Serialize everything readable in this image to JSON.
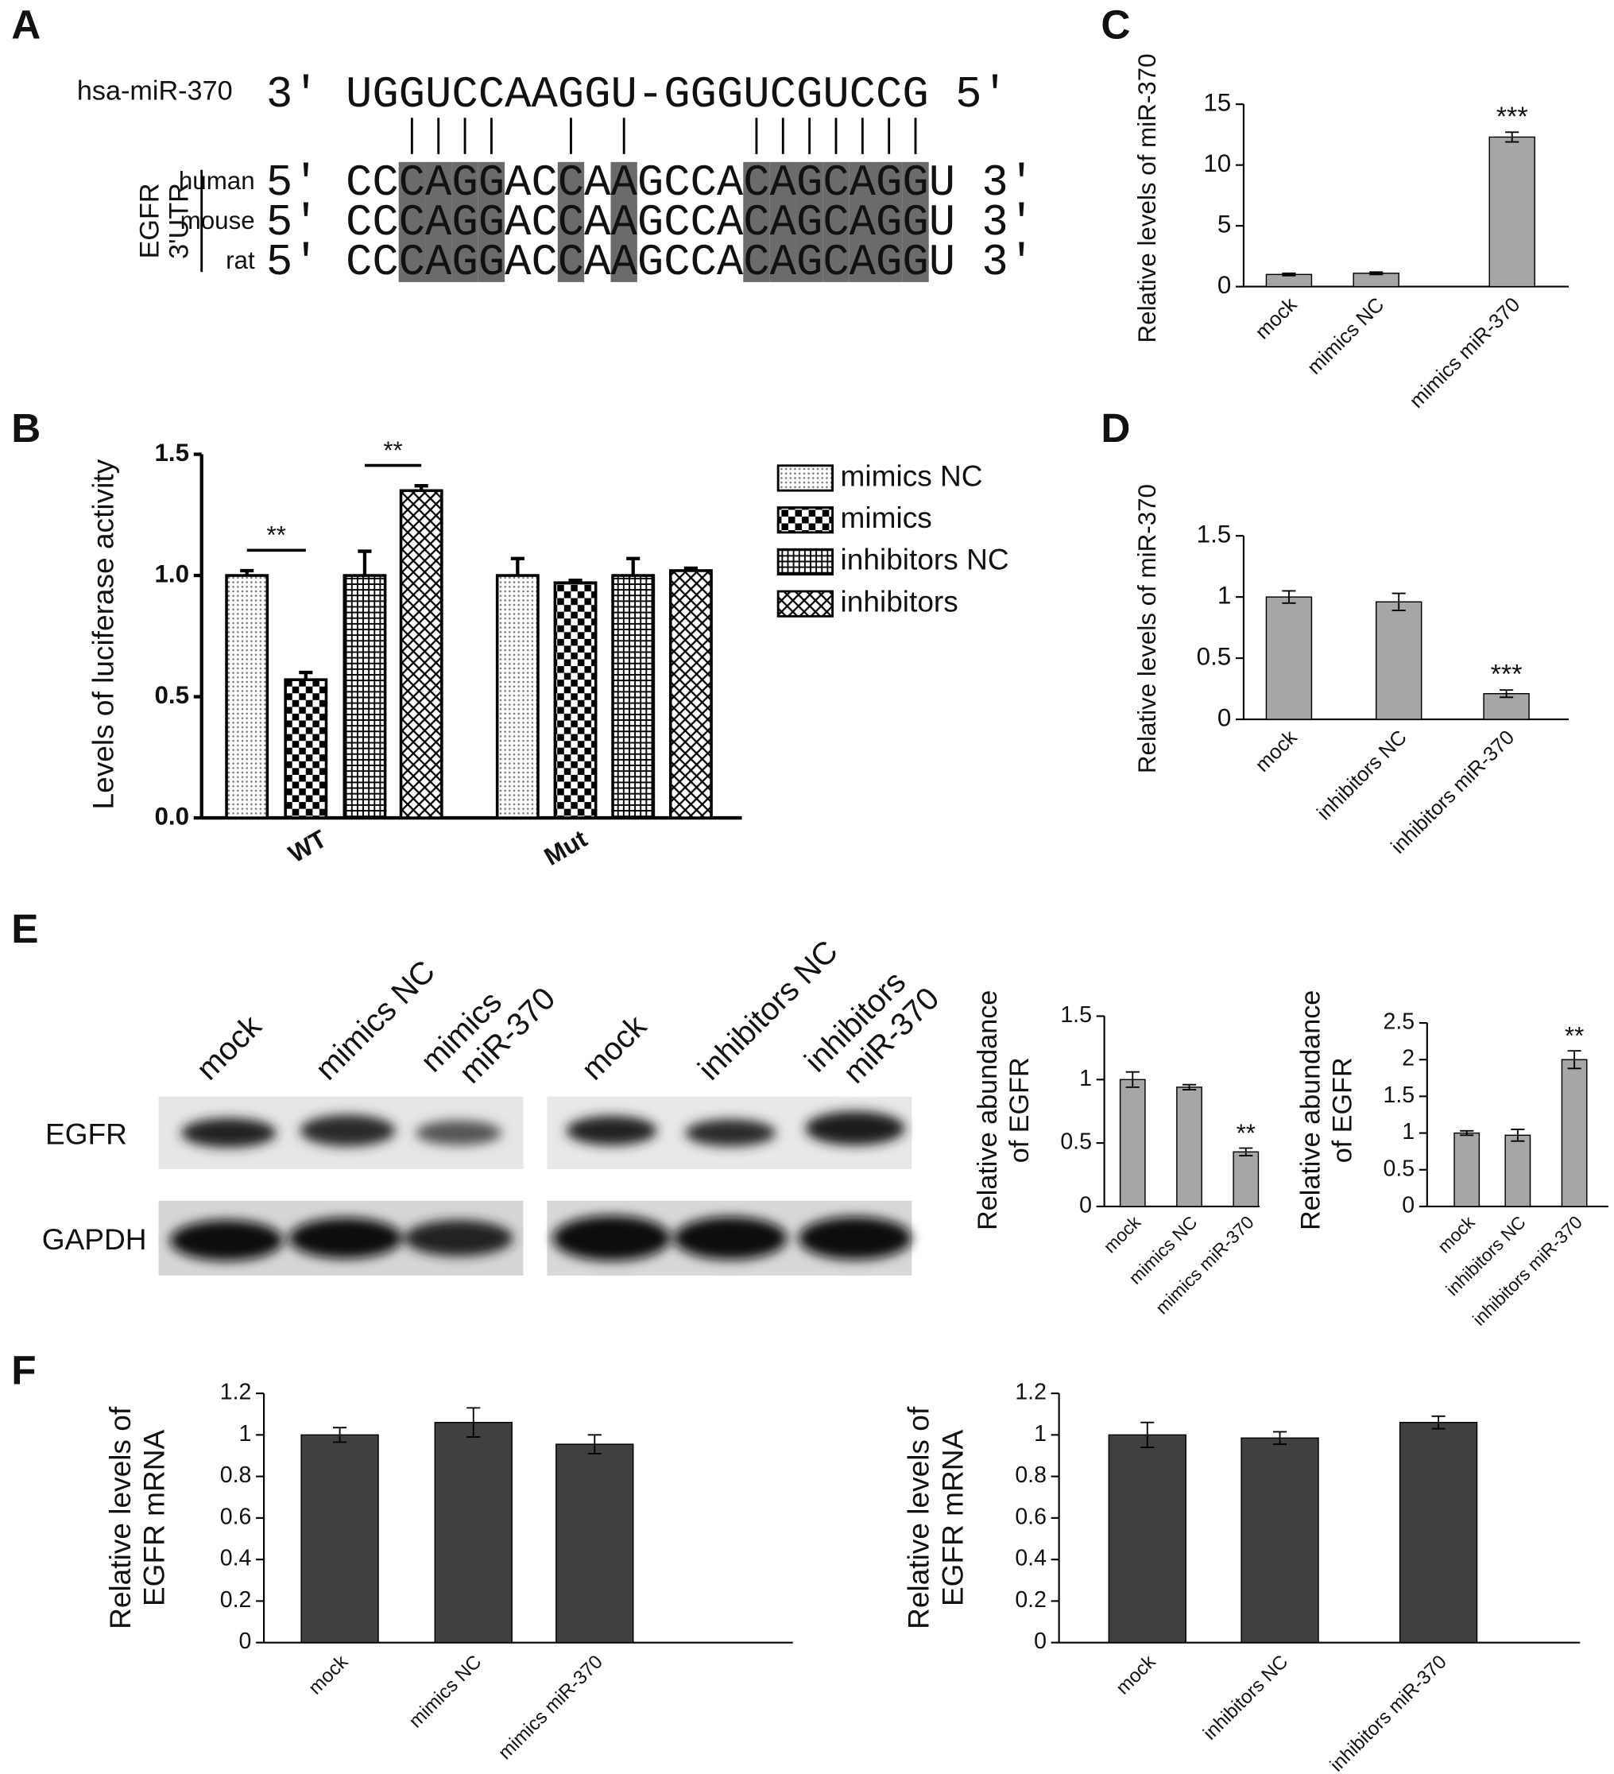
{
  "panel_labels": [
    "A",
    "B",
    "C",
    "D",
    "E",
    "F"
  ],
  "alignment": {
    "mirna_name": "hsa-miR-370",
    "mirna_seq": "3' UGGUCCAAGGU-GGGUCGUCCG 5'",
    "gene_label": [
      "EGFR",
      "3'UTR"
    ],
    "rows": [
      {
        "species": "human",
        "seq": "5' CCCAGGACCAAGCCACAGCAGGU 3'"
      },
      {
        "species": "mouse",
        "seq": "5' CCCAGGACCAAGCCACAGCAGGU 3'"
      },
      {
        "species": "rat",
        "seq": "5' CCCAGGACCAAGCCACAGCAGGU 3'"
      }
    ]
  },
  "blot": {
    "lanes": [
      [
        "mock"
      ],
      [
        "mimics NC"
      ],
      [
        "mimics",
        "miR-370"
      ],
      [
        "mock"
      ],
      [
        "inhibitors NC"
      ],
      [
        "inhibitors",
        "miR-370"
      ]
    ],
    "rows": [
      "EGFR",
      "GAPDH"
    ]
  },
  "chart_data": [
    {
      "type": "bar",
      "ylabel": "Levels of luciferase activity",
      "categories": [
        "WT",
        "Mut"
      ],
      "series": [
        {
          "name": "mimics NC",
          "pattern": "dots",
          "values": [
            1.0,
            1.0
          ],
          "errors": [
            0.02,
            0.07
          ]
        },
        {
          "name": "mimics",
          "pattern": "checker",
          "values": [
            0.57,
            0.97
          ],
          "errors": [
            0.03,
            0.01
          ]
        },
        {
          "name": "inhibitors NC",
          "pattern": "grid",
          "values": [
            1.0,
            1.0
          ],
          "errors": [
            0.1,
            0.07
          ]
        },
        {
          "name": "inhibitors",
          "pattern": "crosshatch",
          "values": [
            1.35,
            1.02
          ],
          "errors": [
            0.02,
            0.01
          ]
        }
      ],
      "annotations": [
        "**",
        "**"
      ],
      "ylim": [
        0,
        1.5
      ],
      "yticks": [
        {
          "value": 0,
          "label": "0.0"
        },
        0.5,
        {
          "value": 1,
          "label": "1.0"
        },
        1.5
      ]
    },
    {
      "type": "bar",
      "ylabel": "Relative levels of miR-370",
      "categories": [
        "mock",
        "mimics NC",
        "mimics miR-370"
      ],
      "values": [
        1.0,
        1.1,
        12.3
      ],
      "errors": [
        0.1,
        0.1,
        0.4
      ],
      "significance": [
        null,
        null,
        "***"
      ],
      "color": "#a6a6a6",
      "ylim": [
        0,
        15
      ],
      "yticks": [
        0,
        5,
        10,
        15
      ]
    },
    {
      "type": "bar",
      "ylabel": "Relative levels of miR-370",
      "categories": [
        "mock",
        "inhibitors NC",
        "inhibitors miR-370"
      ],
      "values": [
        1.0,
        0.96,
        0.21
      ],
      "errors": [
        0.05,
        0.07,
        0.03
      ],
      "significance": [
        null,
        null,
        "***"
      ],
      "color": "#a6a6a6",
      "ylim": [
        0,
        1.5
      ],
      "yticks": [
        0,
        0.5,
        1,
        1.5
      ]
    },
    {
      "type": "bar",
      "ylabel": [
        "Relative abundance",
        "of EGFR"
      ],
      "categories": [
        "mock",
        "mimics NC",
        "mimics miR-370"
      ],
      "values": [
        1.0,
        0.94,
        0.43
      ],
      "errors": [
        0.06,
        0.02,
        0.03
      ],
      "significance": [
        null,
        null,
        "**"
      ],
      "color": "#a6a6a6",
      "ylim": [
        0,
        1.5
      ],
      "yticks": [
        0,
        0.5,
        1,
        1.5
      ]
    },
    {
      "type": "bar",
      "ylabel": [
        "Relative abundance",
        "of EGFR"
      ],
      "categories": [
        "mock",
        "inhibitors NC",
        "inhibitors miR-370"
      ],
      "values": [
        1.0,
        0.97,
        2.0
      ],
      "errors": [
        0.03,
        0.08,
        0.12
      ],
      "significance": [
        null,
        null,
        "**"
      ],
      "color": "#a6a6a6",
      "ylim": [
        0,
        2.5
      ],
      "yticks": [
        0,
        0.5,
        1,
        1.5,
        2,
        2.5
      ]
    },
    {
      "type": "bar",
      "ylabel": [
        "Relative levels of",
        "EGFR mRNA"
      ],
      "categories": [
        "mock",
        "mimics NC",
        "mimics miR-370"
      ],
      "values": [
        1.0,
        1.06,
        0.955
      ],
      "errors": [
        0.035,
        0.07,
        0.045
      ],
      "color": "#404040",
      "ylim": [
        0,
        1.2
      ],
      "yticks": [
        0,
        0.2,
        0.4,
        0.6,
        0.8,
        1,
        1.2
      ]
    },
    {
      "type": "bar",
      "ylabel": [
        "Relative levels of",
        "EGFR mRNA"
      ],
      "categories": [
        "mock",
        "inhibitors NC",
        "inhibitors miR-370"
      ],
      "values": [
        1.0,
        0.985,
        1.06
      ],
      "errors": [
        0.06,
        0.03,
        0.03
      ],
      "color": "#404040",
      "ylim": [
        0,
        1.2
      ],
      "yticks": [
        0,
        0.2,
        0.4,
        0.6,
        0.8,
        1,
        1.2
      ]
    }
  ]
}
